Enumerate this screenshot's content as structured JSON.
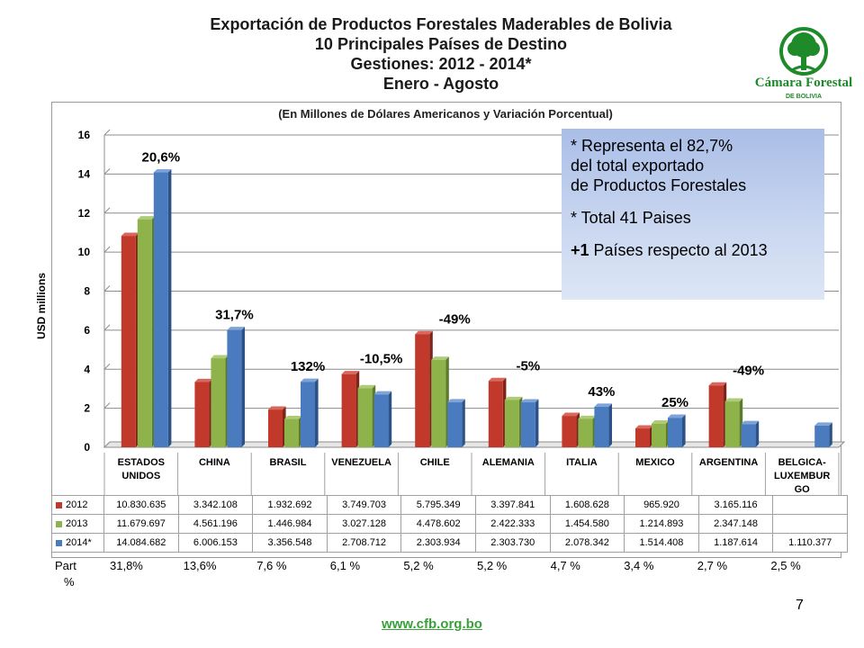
{
  "title_lines": [
    "Exportación de Productos Forestales Maderables de Bolivia",
    "10 Principales Países de Destino",
    "Gestiones: 2012 - 2014*",
    "Enero - Agosto"
  ],
  "logo": {
    "name": "Cámara Forestal",
    "sub": "DE BOLIVIA"
  },
  "page_number": "7",
  "footer_url": "www.cfb.org.bo",
  "info_box": {
    "line1": "* Representa el 82,7%",
    "line2": "del total exportado",
    "line3": "de Productos Forestales",
    "line4": "* Total 41 Paises",
    "line5_bold": "+1",
    "line5_rest": " Países respecto al 2013"
  },
  "share": {
    "label_top": "Part",
    "label_bottom": "%",
    "values": [
      "31,8%",
      "13,6%",
      "7,6 %",
      "6,1 %",
      "5,2 %",
      "5,2 %",
      "4,7 %",
      "3,4 %",
      "2,7 %",
      "2,5 %"
    ]
  },
  "colors": {
    "2012": "#c0392b",
    "2013": "#8db34a",
    "2014": "#4a7bbf"
  },
  "chart_data": {
    "type": "bar",
    "subtitle": "(En Millones de Dólares Americanos y Variación Porcentual)",
    "ylabel": "USD millions",
    "xlabel": "",
    "ylim": [
      0,
      16
    ],
    "yticks": [
      0,
      2,
      4,
      6,
      8,
      10,
      12,
      14,
      16
    ],
    "grid": true,
    "categories": [
      [
        "ESTADOS",
        "UNIDOS"
      ],
      [
        "CHINA"
      ],
      [
        "BRASIL"
      ],
      [
        "VENEZUELA"
      ],
      [
        "CHILE"
      ],
      [
        "ALEMANIA"
      ],
      [
        "ITALIA"
      ],
      [
        "MEXICO"
      ],
      [
        "ARGENTINA"
      ],
      [
        "BELGICA-",
        "LUXEMBUR",
        "GO"
      ]
    ],
    "series": [
      {
        "name": "2012",
        "values": [
          10.830635,
          3.342108,
          1.932692,
          3.749703,
          5.795349,
          3.397841,
          1.608628,
          0.96592,
          3.165116,
          null
        ],
        "labels": [
          "10.830.635",
          "3.342.108",
          "1.932.692",
          "3.749.703",
          "5.795.349",
          "3.397.841",
          "1.608.628",
          "965.920",
          "3.165.116",
          ""
        ]
      },
      {
        "name": "2013",
        "values": [
          11.679697,
          4.561196,
          1.446984,
          3.027128,
          4.478602,
          2.422333,
          1.45458,
          1.214893,
          2.347148,
          null
        ],
        "labels": [
          "11.679.697",
          "4.561.196",
          "1.446.984",
          "3.027.128",
          "4.478.602",
          "2.422.333",
          "1.454.580",
          "1.214.893",
          "2.347.148",
          ""
        ]
      },
      {
        "name": "2014*",
        "values": [
          14.084682,
          6.006153,
          3.356548,
          2.708712,
          2.303934,
          2.30373,
          2.078342,
          1.514408,
          1.187614,
          1.110377
        ],
        "labels": [
          "14.084.682",
          "6.006.153",
          "3.356.548",
          "2.708.712",
          "2.303.934",
          "2.303.730",
          "2.078.342",
          "1.514.408",
          "1.187.614",
          "1.110.377"
        ]
      }
    ],
    "annotations": [
      "20,6%",
      "31,7%",
      "132%",
      "-10,5%",
      "-49%",
      "-5%",
      "43%",
      "25%",
      "-49%",
      ""
    ]
  }
}
